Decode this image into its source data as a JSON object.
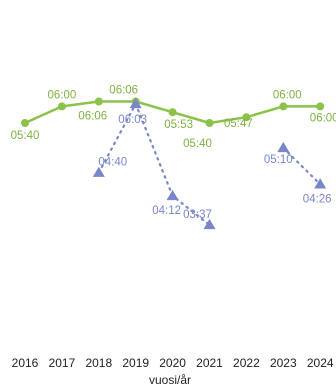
{
  "chart_data": {
    "type": "line",
    "title": "",
    "xlabel": "vuosi/år",
    "ylabel": "",
    "grid": false,
    "legend": "none",
    "x": [
      "2016",
      "2017",
      "2018",
      "2019",
      "2020",
      "2021",
      "2022",
      "2023",
      "2024"
    ],
    "ylim": [
      "08:00",
      "01:00"
    ],
    "series": [
      {
        "marker": "circle",
        "line_style": "solid",
        "color": "#8bc34a",
        "label_color": "#7cb342",
        "values": [
          "05:40",
          "06:00",
          "06:06",
          "06:06",
          "05:53",
          "05:40",
          "05:47",
          "06:00",
          "06:00"
        ]
      },
      {
        "marker": "triangle",
        "line_style": "dotted",
        "color": "#7986cb",
        "label_color": "#7986cb",
        "values": [
          null,
          null,
          "04:40",
          "06:03",
          "04:12",
          "03:37",
          null,
          "05:10",
          "04:26"
        ]
      }
    ]
  }
}
